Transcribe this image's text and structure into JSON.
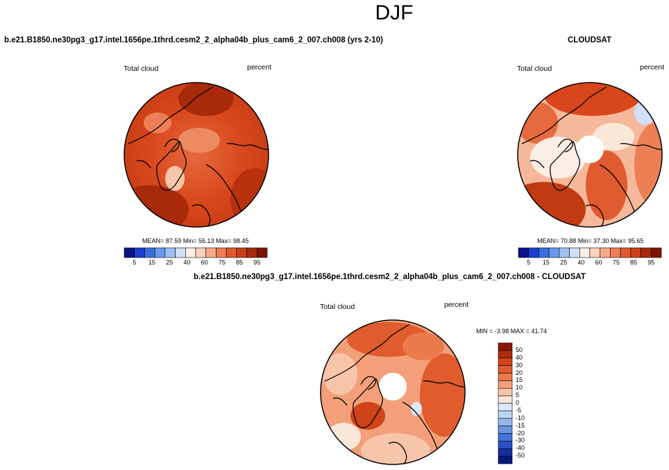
{
  "title": "DJF",
  "panels": [
    {
      "id": "model",
      "header": "b.e21.B1850.ne30pg3_g17.intel.1656pe.1thrd.cesm2_2_alpha04b_plus_cam6_2_007.ch008 (yrs 2-10)",
      "left_label": "Total cloud",
      "right_label": "percent",
      "stats": "MEAN=  87.59  Min=  56.13  Max=  98.45",
      "colorbar_ticks": [
        "5",
        "15",
        "25",
        "40",
        "60",
        "75",
        "85",
        "95"
      ]
    },
    {
      "id": "obs",
      "header": "CLOUDSAT",
      "left_label": "Total cloud",
      "right_label": "percent",
      "stats": "MEAN=  70.88  Min=  37.30  Max=  95.65",
      "colorbar_ticks": [
        "5",
        "15",
        "25",
        "40",
        "60",
        "75",
        "85",
        "95"
      ]
    },
    {
      "id": "diff",
      "header": "b.e21.B1850.ne30pg3_g17.intel.1656pe.1thrd.cesm2_2_alpha04b_plus_cam6_2_007.ch008 - CLOUDSAT",
      "left_label": "Total cloud",
      "right_label": "percent",
      "stats": "MIN =  -3.98 MAX =  41.74",
      "colorbar_ticks": [
        "50",
        "40",
        "30",
        "20",
        "15",
        "10",
        "5",
        "0",
        "-5",
        "-10",
        "-15",
        "-20",
        "-30",
        "-40",
        "-50"
      ]
    }
  ],
  "colors": {
    "abs_scale": [
      "#0b1487",
      "#1b3fd1",
      "#3a6ee0",
      "#6a98ec",
      "#9fc0f3",
      "#cfe0f8",
      "#fbeee4",
      "#f9d2bc",
      "#f4aa89",
      "#ec7f56",
      "#e05a30",
      "#cc3f16",
      "#a82a0a",
      "#7d1502"
    ],
    "diff_scale": [
      "#8a1804",
      "#b02c0a",
      "#d0441a",
      "#e05c2c",
      "#ea7a4c",
      "#f3a07a",
      "#f7c6aa",
      "#fbe7da",
      "#dde9f8",
      "#bcd3f3",
      "#94b6ec",
      "#6c95e2",
      "#4472d8",
      "#2850c4",
      "#15309f",
      "#0a1a7a"
    ]
  }
}
